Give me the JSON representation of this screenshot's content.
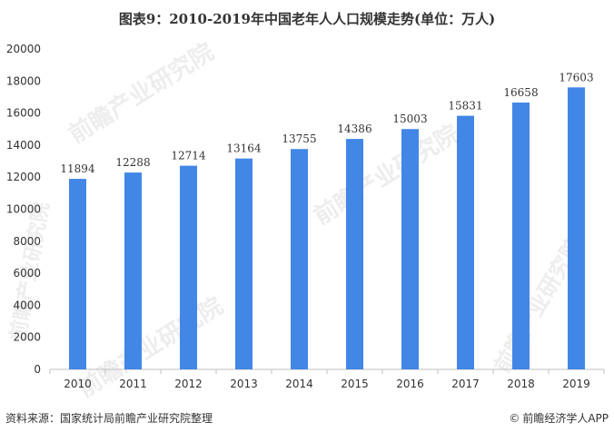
{
  "title": "图表9：2010-2019年中国老年人人口规模走势(单位：万人)",
  "source": "资料来源：国家统计局前瞻产业研究院整理",
  "credit": "前瞻经济学人APP",
  "credit_icon": "copyright-icon",
  "watermark_text": "前瞻产业研究院",
  "colors": {
    "bar": "#4286e6",
    "axis": "#bfbfbf",
    "text": "#333333"
  },
  "chart_data": {
    "type": "bar",
    "title": "图表9：2010-2019年中国老年人人口规模走势(单位：万人)",
    "xlabel": "",
    "ylabel": "",
    "categories": [
      "2010",
      "2011",
      "2012",
      "2013",
      "2014",
      "2015",
      "2016",
      "2017",
      "2018",
      "2019"
    ],
    "values": [
      11894,
      12288,
      12714,
      13164,
      13755,
      14386,
      15003,
      15831,
      16658,
      17603
    ],
    "ylim": [
      0,
      20000
    ],
    "yticks": [
      0,
      2000,
      4000,
      6000,
      8000,
      10000,
      12000,
      14000,
      16000,
      18000,
      20000
    ],
    "grid": false,
    "data_labels": true
  }
}
